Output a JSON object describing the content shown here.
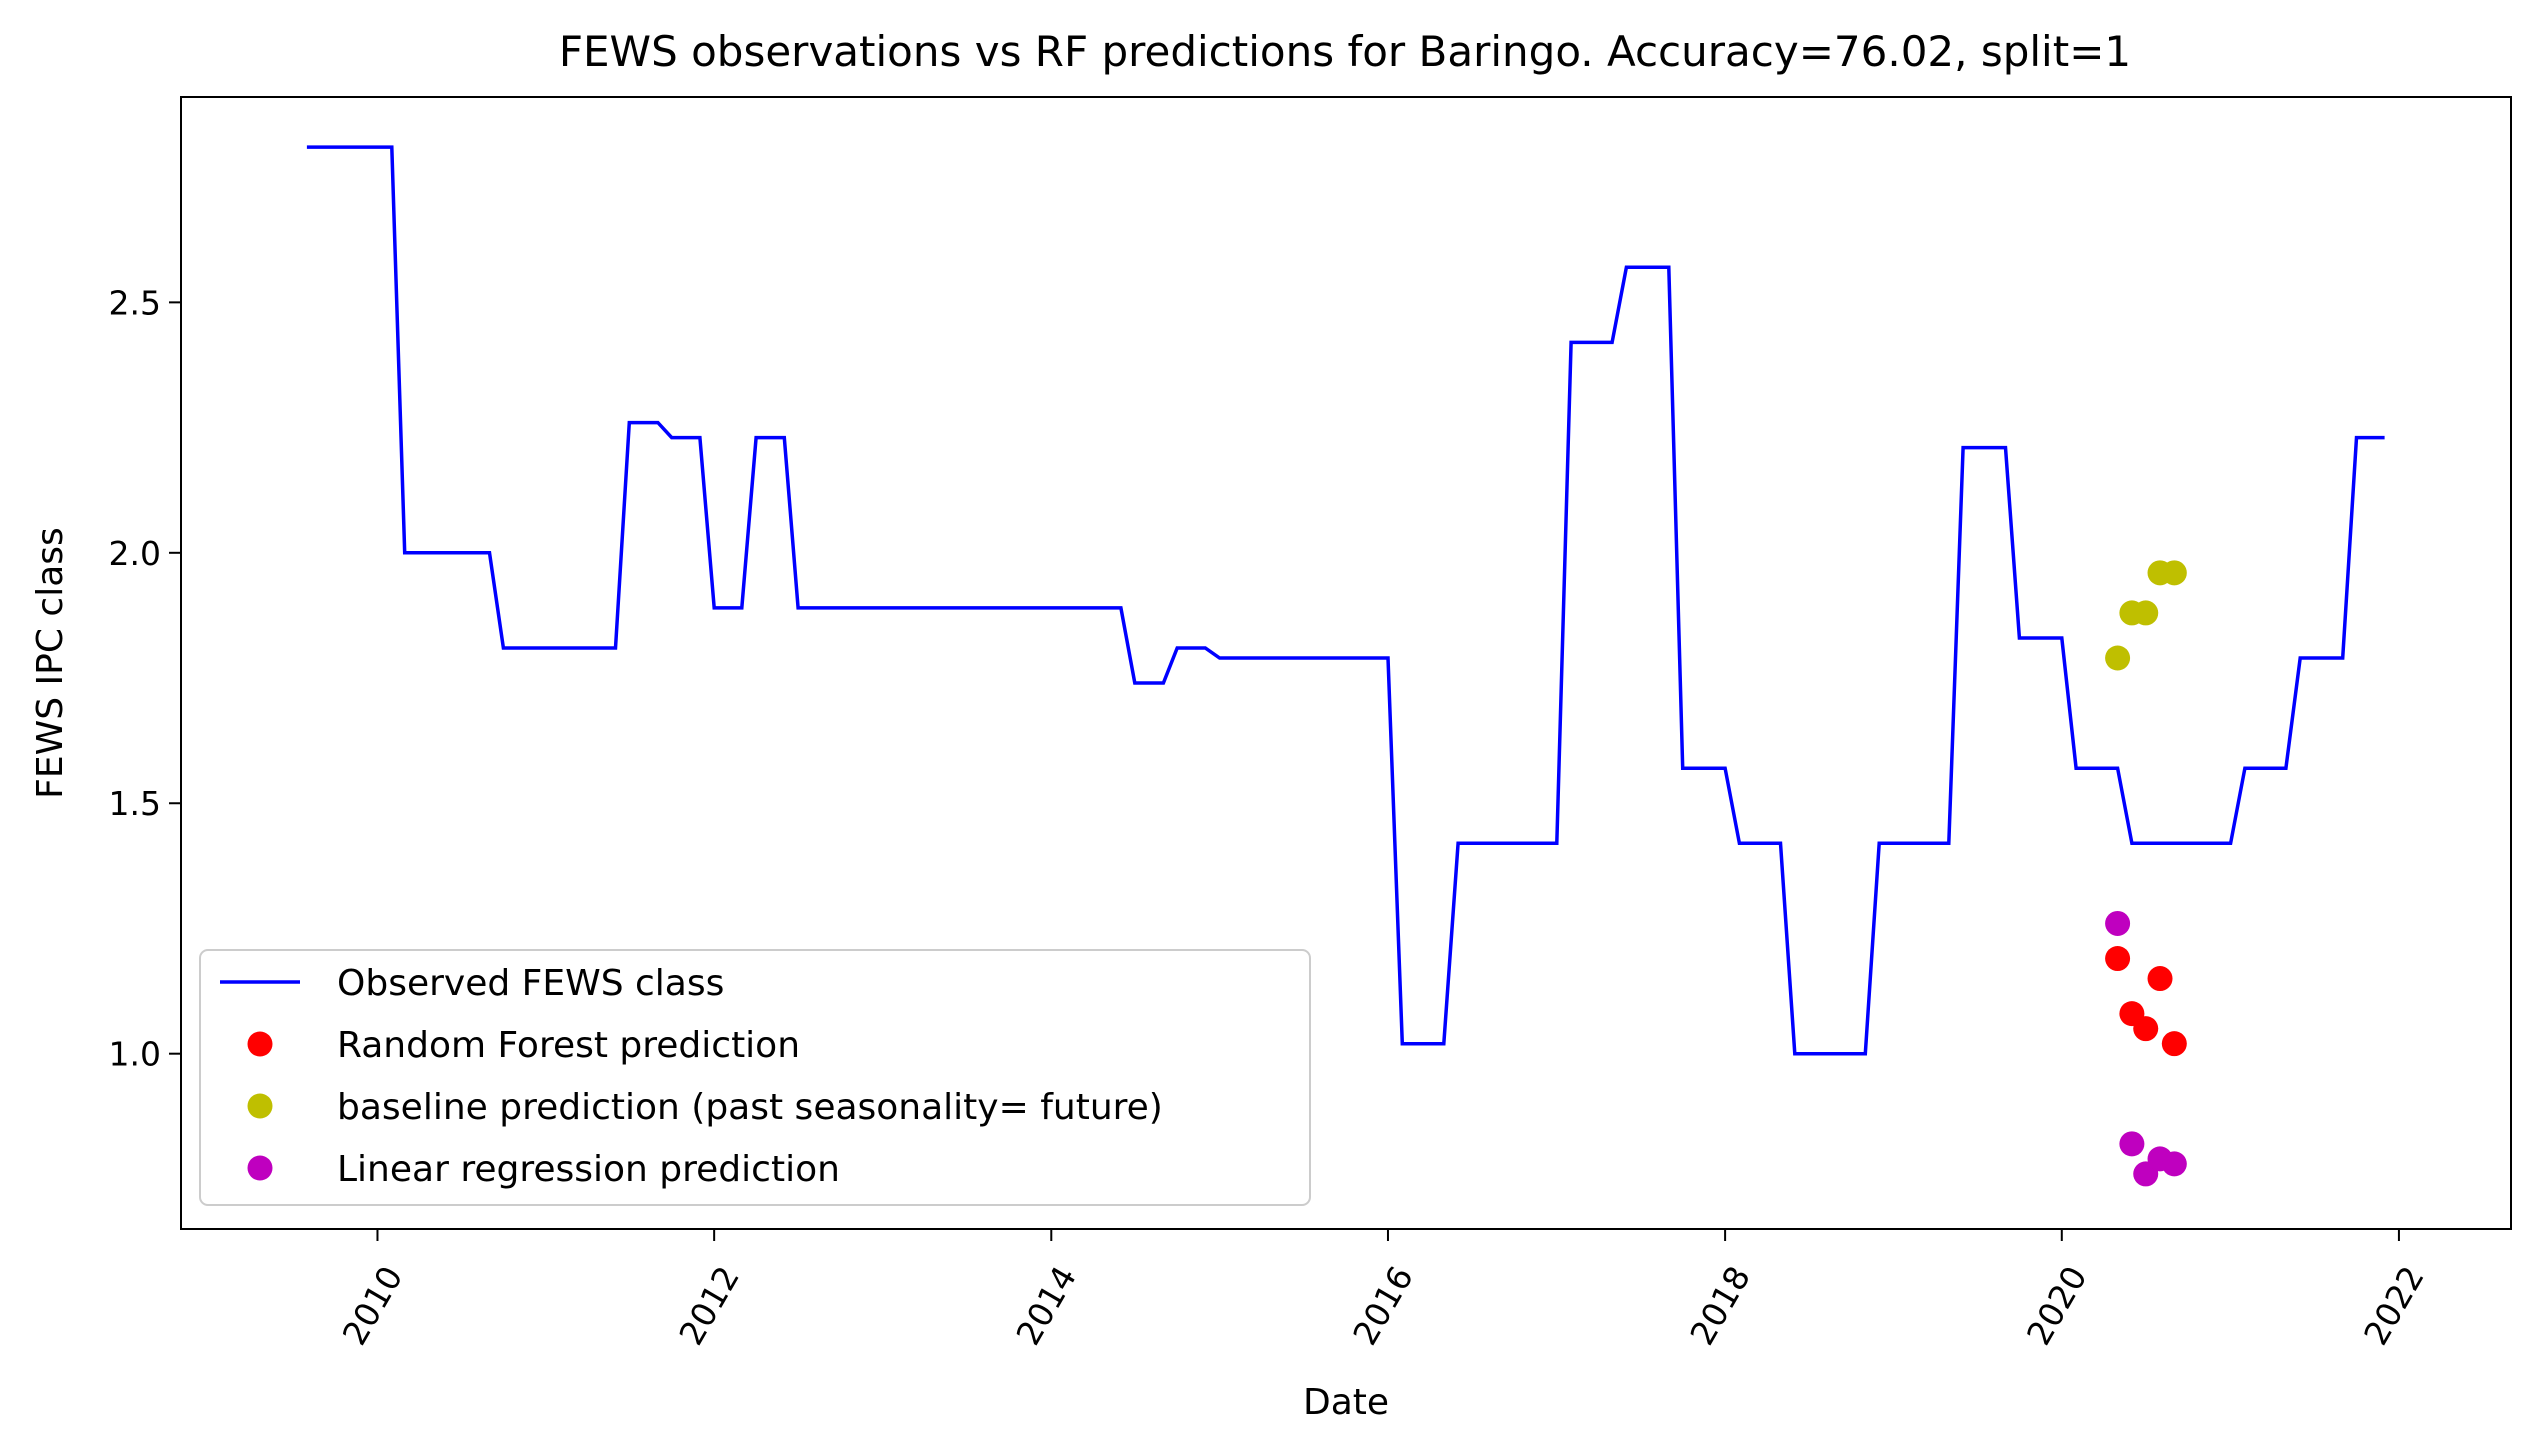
{
  "chart_data": {
    "type": "line",
    "title": "FEWS observations vs RF predictions for Baringo. Accuracy=76.02, split=1",
    "xlabel": "Date",
    "ylabel": "FEWS IPC class",
    "xlim": [
      "2008-11-01",
      "2022-09-01"
    ],
    "ylim": [
      0.65,
      2.91
    ],
    "x_ticks": [
      "2010",
      "2012",
      "2014",
      "2016",
      "2018",
      "2020",
      "2022"
    ],
    "y_ticks": [
      "1.0",
      "1.5",
      "2.0",
      "2.5"
    ],
    "legend_position": "lower-left",
    "grid": false,
    "series": [
      {
        "name": "Observed FEWS class",
        "kind": "line",
        "color": "#0000ff",
        "points": [
          [
            "2009-08-01",
            2.81
          ],
          [
            "2010-02-01",
            2.81
          ],
          [
            "2010-03-01",
            2.0
          ],
          [
            "2010-09-01",
            2.0
          ],
          [
            "2010-10-01",
            1.81
          ],
          [
            "2011-06-01",
            1.81
          ],
          [
            "2011-07-01",
            2.26
          ],
          [
            "2011-09-01",
            2.26
          ],
          [
            "2011-10-01",
            2.23
          ],
          [
            "2011-12-01",
            2.23
          ],
          [
            "2012-01-01",
            1.89
          ],
          [
            "2012-03-01",
            1.89
          ],
          [
            "2012-04-01",
            2.23
          ],
          [
            "2012-06-01",
            2.23
          ],
          [
            "2012-07-01",
            1.89
          ],
          [
            "2014-06-01",
            1.89
          ],
          [
            "2014-07-01",
            1.74
          ],
          [
            "2014-09-01",
            1.74
          ],
          [
            "2014-10-01",
            1.81
          ],
          [
            "2014-12-01",
            1.81
          ],
          [
            "2015-01-01",
            1.79
          ],
          [
            "2016-01-01",
            1.79
          ],
          [
            "2016-02-01",
            1.02
          ],
          [
            "2016-05-01",
            1.02
          ],
          [
            "2016-06-01",
            1.42
          ],
          [
            "2017-01-01",
            1.42
          ],
          [
            "2017-02-01",
            2.42
          ],
          [
            "2017-05-01",
            2.42
          ],
          [
            "2017-06-01",
            2.57
          ],
          [
            "2017-09-01",
            2.57
          ],
          [
            "2017-10-01",
            1.57
          ],
          [
            "2018-01-01",
            1.57
          ],
          [
            "2018-02-01",
            1.42
          ],
          [
            "2018-05-01",
            1.42
          ],
          [
            "2018-06-01",
            1.0
          ],
          [
            "2018-11-01",
            1.0
          ],
          [
            "2018-12-01",
            1.42
          ],
          [
            "2019-05-01",
            1.42
          ],
          [
            "2019-06-01",
            2.21
          ],
          [
            "2019-09-01",
            2.21
          ],
          [
            "2019-10-01",
            1.83
          ],
          [
            "2020-01-01",
            1.83
          ],
          [
            "2020-02-01",
            1.57
          ],
          [
            "2020-05-01",
            1.57
          ],
          [
            "2020-06-01",
            1.42
          ],
          [
            "2021-01-01",
            1.42
          ],
          [
            "2021-02-01",
            1.57
          ],
          [
            "2021-05-01",
            1.57
          ],
          [
            "2021-06-01",
            1.79
          ],
          [
            "2021-09-01",
            1.79
          ],
          [
            "2021-10-01",
            2.23
          ],
          [
            "2021-12-01",
            2.23
          ]
        ]
      },
      {
        "name": "Random Forest prediction",
        "kind": "scatter",
        "color": "#ff0000",
        "points": [
          [
            "2020-05-01",
            1.19
          ],
          [
            "2020-06-01",
            1.08
          ],
          [
            "2020-07-01",
            1.05
          ],
          [
            "2020-08-01",
            1.15
          ],
          [
            "2020-09-01",
            1.02
          ]
        ]
      },
      {
        "name": "baseline prediction (past seasonality= future)",
        "kind": "scatter",
        "color": "#bfbf00",
        "points": [
          [
            "2020-05-01",
            1.79
          ],
          [
            "2020-06-01",
            1.88
          ],
          [
            "2020-07-01",
            1.88
          ],
          [
            "2020-08-01",
            1.96
          ],
          [
            "2020-09-01",
            1.96
          ]
        ]
      },
      {
        "name": "Linear regression prediction",
        "kind": "scatter",
        "color": "#bf00bf",
        "points": [
          [
            "2020-05-01",
            1.26
          ],
          [
            "2020-06-01",
            0.82
          ],
          [
            "2020-07-01",
            0.76
          ],
          [
            "2020-08-01",
            0.79
          ],
          [
            "2020-09-01",
            0.78
          ]
        ]
      }
    ]
  }
}
